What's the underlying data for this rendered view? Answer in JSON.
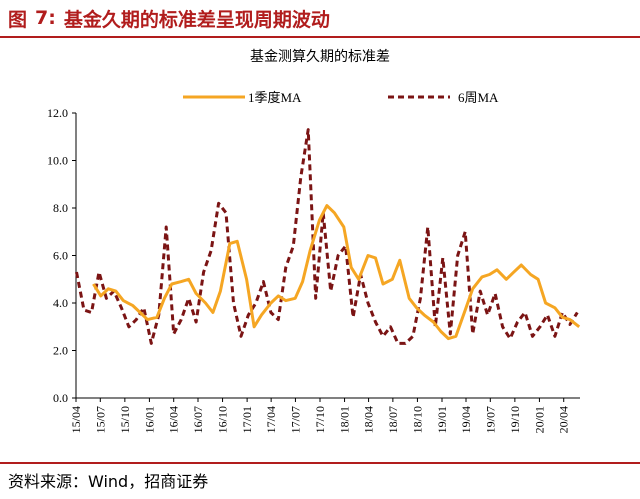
{
  "figure": {
    "label": "图",
    "number": "7:",
    "title": "基金久期的标准差呈现周期波动"
  },
  "source_text": "资料来源：Wind，招商证券",
  "chart_data": {
    "type": "line",
    "title": "基金测算久期的标准差",
    "ylim": [
      0,
      12
    ],
    "yticks": [
      "0.0",
      "2.0",
      "4.0",
      "6.0",
      "8.0",
      "10.0",
      "12.0"
    ],
    "xticks": [
      "15/04",
      "15/07",
      "15/10",
      "16/01",
      "16/04",
      "16/07",
      "16/10",
      "17/01",
      "17/04",
      "17/07",
      "17/10",
      "18/01",
      "18/04",
      "18/07",
      "18/10",
      "19/01",
      "19/04",
      "19/07",
      "19/10",
      "20/01",
      "20/04"
    ],
    "legend_position": "top",
    "grid": false,
    "series": [
      {
        "name": "1季度MA",
        "color": "#f5a623",
        "style": "solid",
        "x": [
          "2015-06-05",
          "2015-07-03",
          "2015-07-31",
          "2015-08-28",
          "2015-09-25",
          "2015-10-30",
          "2015-11-27",
          "2015-12-25",
          "2016-01-29",
          "2016-02-26",
          "2016-03-25",
          "2016-04-29",
          "2016-05-27",
          "2016-06-24",
          "2016-07-29",
          "2016-08-26",
          "2016-09-23",
          "2016-10-28",
          "2016-11-25",
          "2016-12-30",
          "2017-01-27",
          "2017-02-24",
          "2017-03-31",
          "2017-04-28",
          "2017-05-26",
          "2017-06-30",
          "2017-07-28",
          "2017-08-25",
          "2017-09-29",
          "2017-10-27",
          "2017-11-24",
          "2017-12-29",
          "2018-01-26",
          "2018-02-23",
          "2018-03-30",
          "2018-04-27",
          "2018-05-25",
          "2018-06-29",
          "2018-07-27",
          "2018-08-31",
          "2018-09-28",
          "2018-10-26",
          "2018-11-30",
          "2018-12-28",
          "2019-01-25",
          "2019-02-22",
          "2019-03-29",
          "2019-04-26",
          "2019-05-31",
          "2019-06-28",
          "2019-07-26",
          "2019-08-30",
          "2019-09-27",
          "2019-10-25",
          "2019-11-29",
          "2019-12-27",
          "2020-01-24",
          "2020-02-28",
          "2020-03-27",
          "2020-04-24",
          "2020-05-29"
        ],
        "values": [
          4.8,
          4.3,
          4.6,
          4.5,
          4.1,
          3.9,
          3.6,
          3.3,
          3.4,
          4.2,
          4.8,
          4.9,
          5.0,
          4.4,
          4.0,
          3.6,
          4.5,
          6.5,
          6.6,
          5.0,
          3.0,
          3.5,
          4.0,
          4.3,
          4.1,
          4.2,
          4.9,
          6.2,
          7.5,
          8.1,
          7.8,
          7.2,
          5.5,
          5.0,
          6.0,
          5.9,
          4.8,
          5.0,
          5.8,
          4.2,
          3.8,
          3.5,
          3.2,
          2.8,
          2.5,
          2.6,
          3.7,
          4.6,
          5.1,
          5.2,
          5.4,
          5.0,
          5.3,
          5.6,
          5.2,
          5.0,
          4.0,
          3.8,
          3.4,
          3.3,
          3.0
        ]
      },
      {
        "name": "6周MA",
        "color": "#7b1414",
        "style": "dashed",
        "x": [
          "2015-04-03",
          "2015-05-01",
          "2015-05-29",
          "2015-06-26",
          "2015-07-24",
          "2015-08-21",
          "2015-09-18",
          "2015-10-16",
          "2015-11-13",
          "2015-12-11",
          "2016-01-08",
          "2016-02-05",
          "2016-03-04",
          "2016-04-01",
          "2016-04-29",
          "2016-05-27",
          "2016-06-24",
          "2016-07-22",
          "2016-08-19",
          "2016-09-16",
          "2016-10-14",
          "2016-11-11",
          "2016-12-09",
          "2017-01-06",
          "2017-02-03",
          "2017-03-03",
          "2017-03-31",
          "2017-04-28",
          "2017-05-26",
          "2017-06-23",
          "2017-07-21",
          "2017-08-18",
          "2017-09-15",
          "2017-10-13",
          "2017-11-10",
          "2017-12-08",
          "2018-01-05",
          "2018-02-02",
          "2018-03-02",
          "2018-03-30",
          "2018-04-27",
          "2018-05-25",
          "2018-06-22",
          "2018-07-20",
          "2018-08-17",
          "2018-09-14",
          "2018-10-12",
          "2018-11-09",
          "2018-12-07",
          "2019-01-04",
          "2019-02-01",
          "2019-03-01",
          "2019-03-29",
          "2019-04-26",
          "2019-05-24",
          "2019-06-21",
          "2019-07-19",
          "2019-08-16",
          "2019-09-13",
          "2019-10-11",
          "2019-11-08",
          "2019-12-06",
          "2020-01-03",
          "2020-01-31",
          "2020-02-28",
          "2020-03-27",
          "2020-04-24",
          "2020-05-22"
        ],
        "values": [
          5.3,
          3.7,
          3.6,
          5.3,
          4.2,
          4.5,
          3.8,
          3.0,
          3.3,
          3.8,
          2.3,
          3.5,
          7.2,
          2.7,
          3.3,
          4.2,
          3.2,
          5.3,
          6.2,
          8.2,
          7.8,
          4.0,
          2.6,
          3.5,
          4.0,
          4.9,
          3.6,
          3.3,
          5.5,
          6.4,
          9.3,
          11.3,
          4.2,
          7.8,
          4.5,
          6.0,
          6.4,
          3.4,
          5.2,
          4.0,
          3.2,
          2.6,
          3.0,
          2.3,
          2.3,
          2.6,
          4.2,
          7.2,
          3.0,
          5.9,
          2.7,
          6.0,
          7.0,
          2.7,
          4.5,
          3.5,
          4.4,
          3.0,
          2.5,
          3.2,
          3.6,
          2.6,
          3.0,
          3.5,
          2.6,
          3.6,
          3.1,
          3.6
        ]
      }
    ]
  }
}
